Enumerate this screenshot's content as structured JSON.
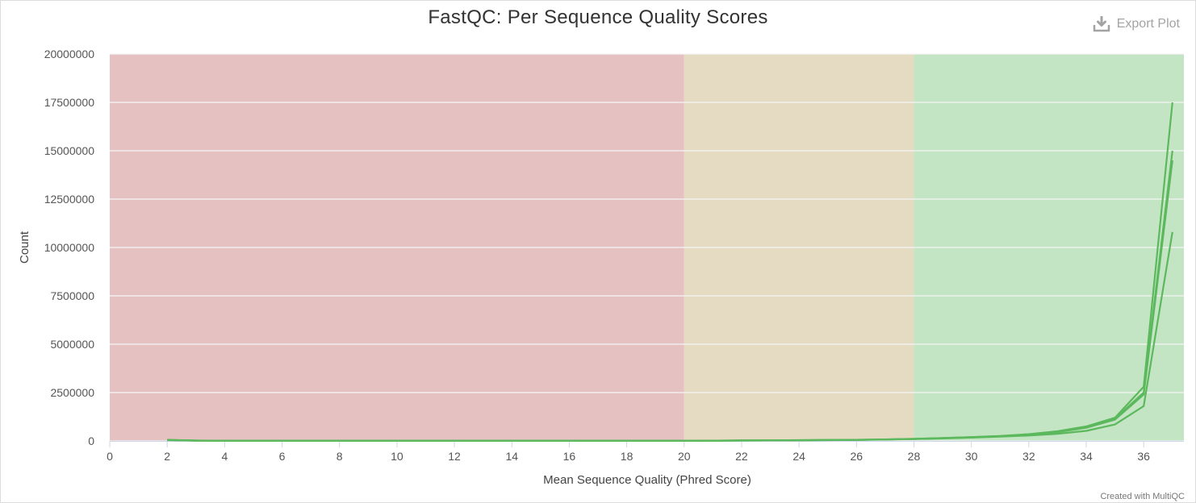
{
  "title": "FastQC: Per Sequence Quality Scores",
  "export_label": "Export Plot",
  "credit": "Created with MultiQC",
  "colors": {
    "fail_band": "#e5c1c1",
    "warn_band": "#e5dbc3",
    "pass_band": "#c3e5c3",
    "series": "#5cb85c",
    "grid": "#f5f5f5",
    "axis": "#ccd6eb"
  },
  "chart_data": {
    "type": "line",
    "xlabel": "Mean Sequence Quality (Phred Score)",
    "ylabel": "Count",
    "xlim": [
      0,
      37.4
    ],
    "ylim": [
      0,
      20000000
    ],
    "xticks": [
      0,
      2,
      4,
      6,
      8,
      10,
      12,
      14,
      16,
      18,
      20,
      22,
      24,
      26,
      28,
      30,
      32,
      34,
      36
    ],
    "yticks": [
      0,
      2500000,
      5000000,
      7500000,
      10000000,
      12500000,
      15000000,
      17500000,
      20000000
    ],
    "bands": [
      {
        "from": 0,
        "to": 20,
        "status": "fail"
      },
      {
        "from": 20,
        "to": 28,
        "status": "warn"
      },
      {
        "from": 28,
        "to": 37.4,
        "status": "pass"
      }
    ],
    "grid": true,
    "legend": "none",
    "x": [
      2,
      3,
      4,
      5,
      6,
      7,
      8,
      9,
      10,
      11,
      12,
      13,
      14,
      15,
      16,
      17,
      18,
      19,
      20,
      21,
      22,
      23,
      24,
      25,
      26,
      27,
      28,
      29,
      30,
      31,
      32,
      33,
      34,
      35,
      36,
      37
    ],
    "series": [
      {
        "values": [
          60000,
          20000,
          8000,
          6000,
          5000,
          5000,
          5000,
          5000,
          5000,
          5000,
          5000,
          5000,
          5000,
          5000,
          6000,
          6000,
          7000,
          8000,
          10000,
          15000,
          25000,
          30000,
          40000,
          50000,
          60000,
          80000,
          110000,
          150000,
          200000,
          260000,
          350000,
          500000,
          750000,
          1200000,
          2800000,
          17500000
        ]
      },
      {
        "values": [
          50000,
          20000,
          8000,
          6000,
          5000,
          5000,
          5000,
          5000,
          5000,
          5000,
          5000,
          5000,
          5000,
          5000,
          6000,
          6000,
          7000,
          8000,
          10000,
          14000,
          24000,
          28000,
          38000,
          48000,
          58000,
          78000,
          105000,
          145000,
          190000,
          250000,
          330000,
          470000,
          700000,
          1150000,
          2500000,
          15000000
        ]
      },
      {
        "values": [
          45000,
          18000,
          7000,
          5000,
          4000,
          4000,
          4000,
          4000,
          4000,
          4000,
          4000,
          4000,
          4000,
          4000,
          5000,
          5000,
          6000,
          7000,
          9000,
          13000,
          22000,
          26000,
          35000,
          45000,
          55000,
          75000,
          100000,
          140000,
          185000,
          240000,
          320000,
          450000,
          680000,
          1100000,
          2400000,
          14500000
        ]
      },
      {
        "values": [
          40000,
          15000,
          6000,
          5000,
          4000,
          4000,
          4000,
          4000,
          4000,
          4000,
          4000,
          4000,
          4000,
          4000,
          5000,
          5000,
          6000,
          7000,
          8000,
          12000,
          20000,
          24000,
          32000,
          40000,
          50000,
          70000,
          95000,
          130000,
          170000,
          220000,
          280000,
          370000,
          520000,
          850000,
          1800000,
          10800000
        ]
      }
    ]
  }
}
